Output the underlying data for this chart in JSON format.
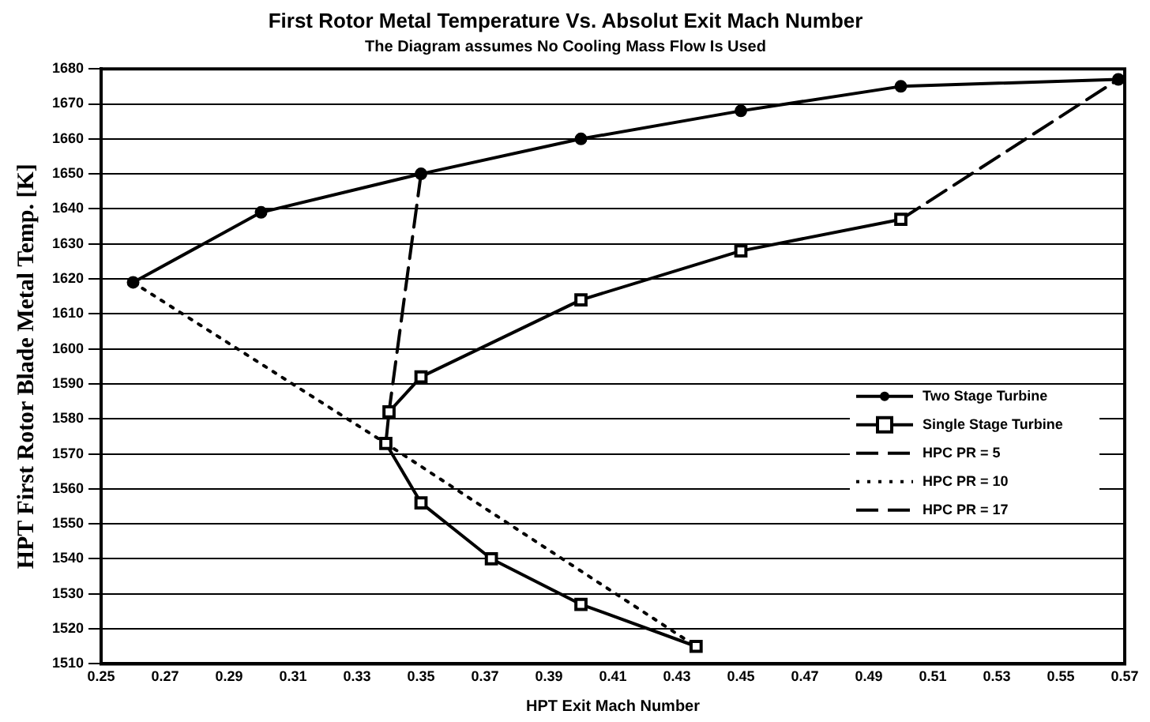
{
  "chart_data": {
    "type": "line",
    "title": "First Rotor Metal Temperature Vs. Absolut Exit Mach Number",
    "subtitle": "The Diagram assumes No Cooling Mass Flow Is Used",
    "xlabel": "HPT Exit Mach Number",
    "ylabel": "HPT First Rotor Blade Metal Temp. [K]",
    "xlim": [
      0.25,
      0.57
    ],
    "xticks": [
      0.25,
      0.27,
      0.29,
      0.31,
      0.33,
      0.35,
      0.37,
      0.39,
      0.41,
      0.43,
      0.45,
      0.47,
      0.49,
      0.51,
      0.53,
      0.55,
      0.57
    ],
    "ylim": [
      1510,
      1680
    ],
    "yticks": [
      1510,
      1520,
      1530,
      1540,
      1550,
      1560,
      1570,
      1580,
      1590,
      1600,
      1610,
      1620,
      1630,
      1640,
      1650,
      1660,
      1670,
      1680
    ],
    "grid": "y",
    "legend": "right",
    "series": [
      {
        "name": "Two Stage Turbine",
        "color": "#000000",
        "marker": "circle",
        "line_style": "solid",
        "x": [
          0.26,
          0.3,
          0.35,
          0.4,
          0.45,
          0.5,
          0.568
        ],
        "values": [
          1619,
          1639,
          1650,
          1660,
          1668,
          1675,
          1677
        ]
      },
      {
        "name": "Single Stage Turbine",
        "color": "#000000",
        "marker": "square",
        "line_style": "solid",
        "x": [
          0.436,
          0.4,
          0.372,
          0.35,
          0.339,
          0.34,
          0.35,
          0.4,
          0.45,
          0.5
        ],
        "values": [
          1515,
          1527,
          1540,
          1556,
          1573,
          1582,
          1592,
          1614,
          1628,
          1637
        ]
      },
      {
        "name": "HPC PR = 5",
        "color": "#000000",
        "marker": "none",
        "line_style": "dashed",
        "x": [
          0.5,
          0.568
        ],
        "values": [
          1637,
          1677
        ]
      },
      {
        "name": "HPC PR = 10",
        "color": "#000000",
        "marker": "none",
        "line_style": "dotted",
        "x": [
          0.26,
          0.339,
          0.436
        ],
        "values": [
          1619,
          1573,
          1515
        ]
      },
      {
        "name": "HPC PR = 17",
        "color": "#000000",
        "marker": "none",
        "line_style": "dashed",
        "x": [
          0.35,
          0.34
        ],
        "values": [
          1650,
          1582
        ]
      }
    ]
  }
}
